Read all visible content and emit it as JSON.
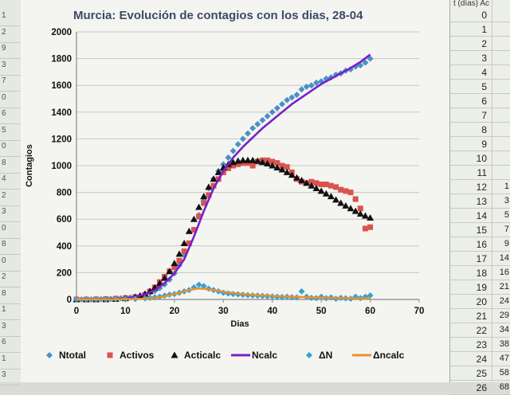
{
  "chart_data": {
    "type": "scatter",
    "title": "Murcia: Evolución de contagios con los dias, 28-04",
    "xlabel": "Dias",
    "ylabel": "Contagios",
    "xlim": [
      0,
      70
    ],
    "ylim": [
      0,
      2000
    ],
    "xticks": [
      "0",
      "10",
      "20",
      "30",
      "40",
      "50",
      "60",
      "70"
    ],
    "yticks": [
      "0",
      "200",
      "400",
      "600",
      "800",
      "1000",
      "1200",
      "1400",
      "1600",
      "1800",
      "2000"
    ],
    "grid": "horizontal",
    "legend_position": "bottom",
    "series": [
      {
        "name": "Ntotal",
        "kind": "diamond",
        "color": "#4a90c8",
        "x": [
          0,
          1,
          2,
          3,
          4,
          5,
          6,
          7,
          8,
          9,
          10,
          11,
          12,
          13,
          14,
          15,
          16,
          17,
          18,
          19,
          20,
          21,
          22,
          23,
          24,
          25,
          26,
          27,
          28,
          29,
          30,
          31,
          32,
          33,
          34,
          35,
          36,
          37,
          38,
          39,
          40,
          41,
          42,
          43,
          44,
          45,
          46,
          47,
          48,
          49,
          50,
          51,
          52,
          53,
          54,
          55,
          56,
          57,
          58,
          59,
          60
        ],
        "y": [
          0,
          0,
          0,
          0,
          1,
          2,
          3,
          4,
          6,
          8,
          11,
          15,
          20,
          27,
          36,
          48,
          64,
          85,
          112,
          148,
          195,
          255,
          330,
          420,
          520,
          630,
          740,
          830,
          900,
          960,
          1010,
          1060,
          1110,
          1160,
          1200,
          1240,
          1280,
          1310,
          1340,
          1370,
          1400,
          1430,
          1460,
          1490,
          1510,
          1530,
          1570,
          1590,
          1600,
          1620,
          1630,
          1650,
          1660,
          1680,
          1690,
          1710,
          1720,
          1740,
          1750,
          1770,
          1800
        ]
      },
      {
        "name": "Activos",
        "kind": "square",
        "color": "#d9534f",
        "x": [
          0,
          2,
          4,
          6,
          8,
          10,
          12,
          14,
          15,
          16,
          17,
          18,
          19,
          20,
          21,
          22,
          23,
          24,
          25,
          26,
          27,
          28,
          29,
          30,
          31,
          32,
          33,
          34,
          35,
          36,
          37,
          38,
          39,
          40,
          41,
          42,
          43,
          44,
          45,
          46,
          47,
          48,
          49,
          50,
          51,
          52,
          53,
          54,
          55,
          56,
          57,
          58,
          59,
          60
        ],
        "y": [
          0,
          0,
          1,
          3,
          6,
          10,
          18,
          35,
          60,
          90,
          130,
          170,
          210,
          240,
          290,
          360,
          420,
          520,
          620,
          720,
          780,
          850,
          900,
          950,
          980,
          1000,
          1010,
          1020,
          1020,
          1000,
          1030,
          1040,
          1040,
          1030,
          1020,
          1000,
          990,
          950,
          900,
          880,
          870,
          880,
          870,
          860,
          860,
          850,
          840,
          820,
          810,
          800,
          750,
          680,
          530,
          540
        ]
      },
      {
        "name": "Acticalc",
        "kind": "triangle",
        "color": "#111111",
        "x": [
          0,
          2,
          4,
          6,
          8,
          10,
          12,
          13,
          14,
          15,
          16,
          17,
          18,
          19,
          20,
          21,
          22,
          23,
          24,
          25,
          26,
          27,
          28,
          29,
          30,
          31,
          32,
          33,
          34,
          35,
          36,
          37,
          38,
          39,
          40,
          41,
          42,
          43,
          44,
          45,
          46,
          47,
          48,
          49,
          50,
          51,
          52,
          53,
          54,
          55,
          56,
          57,
          58,
          59,
          60
        ],
        "y": [
          0,
          0,
          0,
          1,
          3,
          8,
          18,
          28,
          42,
          62,
          88,
          120,
          160,
          210,
          270,
          340,
          420,
          510,
          600,
          690,
          770,
          840,
          900,
          950,
          985,
          1010,
          1025,
          1035,
          1040,
          1040,
          1040,
          1035,
          1025,
          1015,
          1000,
          985,
          970,
          950,
          930,
          910,
          890,
          870,
          850,
          830,
          810,
          790,
          770,
          745,
          720,
          700,
          680,
          660,
          640,
          625,
          610
        ]
      },
      {
        "name": "Ncalc",
        "kind": "line",
        "color": "#7a1fc8",
        "x": [
          0,
          5,
          8,
          10,
          12,
          14,
          16,
          18,
          20,
          22,
          24,
          26,
          28,
          30,
          32,
          34,
          36,
          38,
          40,
          42,
          44,
          46,
          48,
          50,
          52,
          54,
          56,
          58,
          60
        ],
        "y": [
          0,
          1,
          4,
          9,
          20,
          38,
          70,
          120,
          195,
          300,
          470,
          660,
          830,
          960,
          1060,
          1140,
          1210,
          1280,
          1340,
          1400,
          1460,
          1510,
          1560,
          1610,
          1650,
          1690,
          1730,
          1775,
          1830
        ]
      },
      {
        "name": "ΔN",
        "kind": "diamond",
        "color": "#3aa0d8",
        "x": [
          0,
          2,
          4,
          6,
          8,
          10,
          12,
          14,
          15,
          16,
          17,
          18,
          19,
          20,
          21,
          22,
          23,
          24,
          25,
          26,
          27,
          28,
          29,
          30,
          31,
          32,
          33,
          34,
          35,
          36,
          37,
          38,
          39,
          40,
          41,
          42,
          43,
          44,
          45,
          46,
          47,
          48,
          49,
          50,
          51,
          52,
          53,
          54,
          55,
          56,
          57,
          58,
          59,
          60
        ],
        "y": [
          0,
          0,
          0,
          1,
          2,
          3,
          4,
          8,
          12,
          16,
          20,
          28,
          36,
          40,
          50,
          60,
          70,
          90,
          110,
          100,
          80,
          70,
          60,
          50,
          45,
          40,
          38,
          35,
          32,
          30,
          28,
          26,
          24,
          22,
          20,
          18,
          20,
          16,
          15,
          60,
          20,
          12,
          10,
          20,
          10,
          15,
          5,
          12,
          8,
          5,
          20,
          10,
          20,
          30
        ]
      },
      {
        "name": "Δncalc",
        "kind": "line",
        "color": "#e8912c",
        "x": [
          0,
          5,
          10,
          14,
          16,
          18,
          20,
          22,
          24,
          25,
          26,
          28,
          30,
          32,
          34,
          36,
          38,
          40,
          42,
          44,
          46,
          48,
          50,
          52,
          54,
          56,
          58,
          60
        ],
        "y": [
          0,
          0,
          2,
          6,
          12,
          22,
          40,
          60,
          78,
          82,
          80,
          70,
          58,
          48,
          40,
          34,
          30,
          26,
          23,
          20,
          18,
          16,
          14,
          12,
          10,
          9,
          8,
          7
        ]
      }
    ]
  },
  "right_sheet": {
    "header": "t (días) Ac",
    "t_values": [
      "0",
      "1",
      "2",
      "3",
      "4",
      "5",
      "6",
      "7",
      "8",
      "9",
      "10",
      "11",
      "12",
      "13",
      "14",
      "15",
      "16",
      "17",
      "18",
      "19",
      "20",
      "21",
      "22",
      "23",
      "24",
      "25",
      "26"
    ],
    "activos_values": [
      "",
      "",
      "",
      "",
      "",
      "",
      "",
      "",
      "",
      "",
      "",
      "",
      "1",
      "3",
      "5",
      "7",
      "9",
      "14",
      "16",
      "21",
      "24",
      "29",
      "34",
      "38",
      "47",
      "58",
      "68"
    ]
  },
  "left_strip": {
    "values": [
      "1",
      "2",
      "9",
      "3",
      "7",
      "0",
      "6",
      "5",
      "0",
      "8",
      "4",
      "2",
      "3",
      "0",
      "8",
      "0",
      "2",
      "8",
      "1",
      "3",
      "6",
      "1",
      "3"
    ]
  }
}
